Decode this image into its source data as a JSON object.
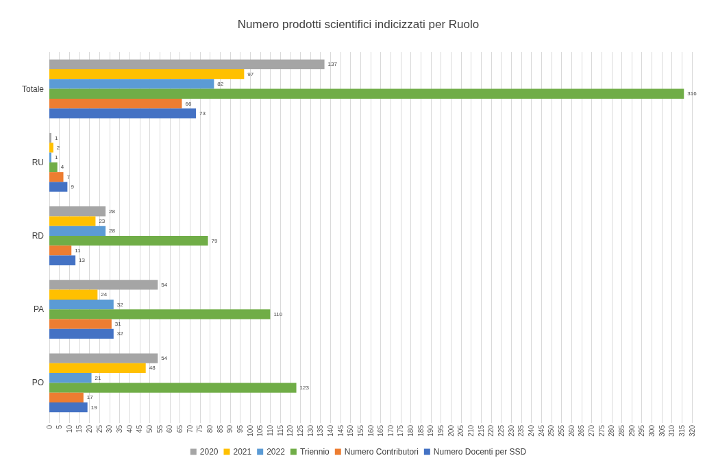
{
  "chart_data": {
    "type": "bar",
    "orientation": "horizontal",
    "title": "Numero prodotti scientifici indicizzati per Ruolo",
    "categories": [
      "Totale",
      "RU",
      "RD",
      "PA",
      "PO"
    ],
    "series": [
      {
        "name": "2020",
        "color": "#a5a5a5",
        "values": [
          137,
          1,
          28,
          54,
          54
        ]
      },
      {
        "name": "2021",
        "color": "#ffc000",
        "values": [
          97,
          2,
          23,
          24,
          48
        ]
      },
      {
        "name": "2022",
        "color": "#5b9bd5",
        "values": [
          82,
          1,
          28,
          32,
          21
        ]
      },
      {
        "name": "Triennio",
        "color": "#70ad47",
        "values": [
          316,
          4,
          79,
          110,
          123
        ]
      },
      {
        "name": "Numero Contributori",
        "color": "#ed7d31",
        "values": [
          66,
          7,
          11,
          31,
          17
        ]
      },
      {
        "name": "Numero Docenti per SSD",
        "color": "#4472c4",
        "values": [
          73,
          9,
          13,
          32,
          19
        ]
      }
    ],
    "xlim": [
      0,
      320
    ],
    "xticks": [
      0,
      5,
      10,
      15,
      20,
      25,
      30,
      35,
      40,
      45,
      50,
      55,
      60,
      65,
      70,
      75,
      80,
      85,
      90,
      95,
      100,
      105,
      110,
      115,
      120,
      125,
      130,
      135,
      140,
      145,
      150,
      155,
      160,
      165,
      170,
      175,
      180,
      185,
      190,
      195,
      200,
      205,
      210,
      215,
      220,
      225,
      230,
      235,
      240,
      245,
      250,
      255,
      260,
      265,
      270,
      275,
      280,
      285,
      290,
      295,
      300,
      305,
      310,
      315,
      320
    ],
    "grid": "x",
    "legend": "bottom",
    "data_labels": true
  }
}
